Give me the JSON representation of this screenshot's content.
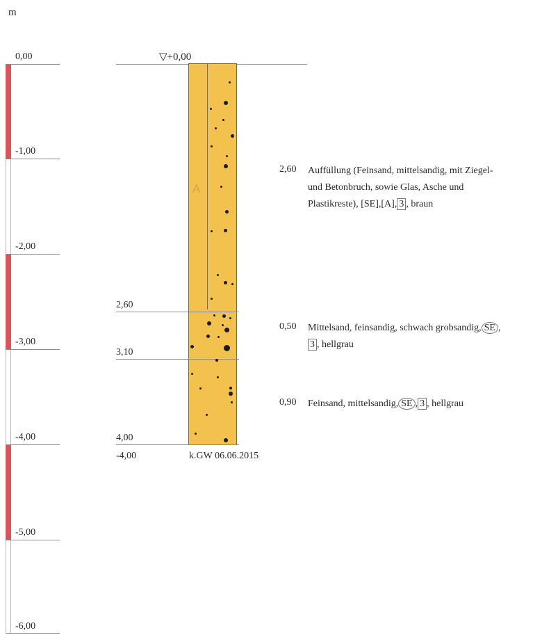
{
  "unit": "m",
  "scale": {
    "labels": [
      "0,00",
      "-1,00",
      "-2,00",
      "-3,00",
      "-4,00",
      "-5,00",
      "-6,00"
    ]
  },
  "profile": {
    "top_marker": "▽+0,00",
    "column_label": "A",
    "boundaries": [
      "2,60",
      "3,10",
      "4,00"
    ],
    "bottom_depth": "-4,00",
    "groundwater_note": "k.GW 06.06.2015",
    "layers": [
      {
        "thickness": "2,60",
        "desc_lines": [
          "Auffüllung (Feinsand, mittelsandig, mit Ziegel-",
          "und Betonbruch, sowie Glas, Asche und"
        ],
        "desc_last_prefix": "Plastikreste), [SE],[A],",
        "desc_last_boxed": "3",
        "desc_last_suffix": ", braun"
      },
      {
        "thickness": "0,50",
        "desc_line1_prefix": "Mittelsand, feinsandig, schwach grobsandig,",
        "desc_line1_circled": "SE",
        "desc_line1_suffix": ",",
        "desc_line2_boxed": "3",
        "desc_line2_suffix": ", hellgrau"
      },
      {
        "thickness": "0,90",
        "desc_prefix": "Feinsand, mittelsandig,",
        "desc_circled": "SE",
        "desc_sep": ",",
        "desc_boxed": "3",
        "desc_suffix": ", hellgrau"
      }
    ]
  },
  "colors": {
    "scale_red": "#d9555c",
    "soil_fill": "#f2c14e",
    "stone_dots": "#1c1c1c"
  }
}
